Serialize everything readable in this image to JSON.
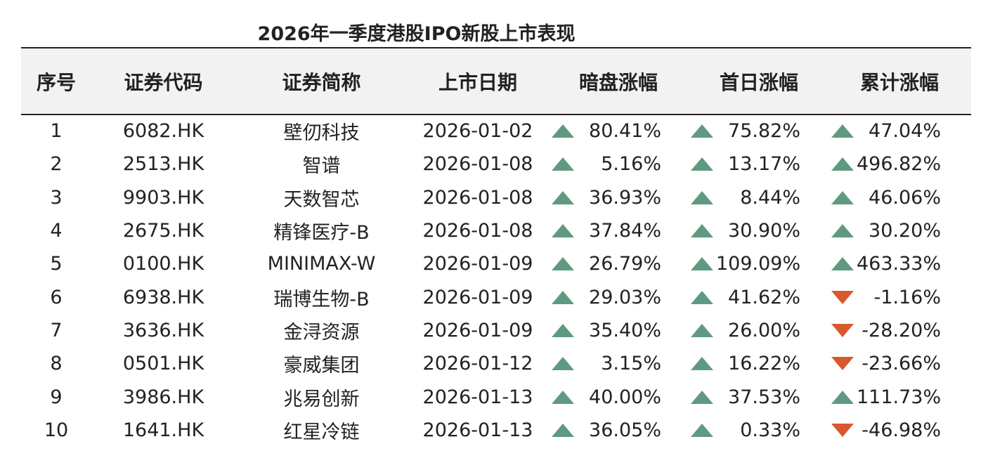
{
  "title": "2026年一季度港股IPO新股上市表现",
  "colors": {
    "up": "#5f9a80",
    "down": "#d9582e",
    "header_bg": "#f2f2f2"
  },
  "headers": [
    "序号",
    "证券代码",
    "证券简称",
    "上市日期",
    "暗盘涨幅",
    "首日涨幅",
    "累计涨幅"
  ],
  "rows": [
    {
      "no": "1",
      "code": "6082.HK",
      "name": "壁仞科技",
      "date": "2026-01-02",
      "grey": "80.41%",
      "first_day": "75.82%",
      "cumulative": "47.04%"
    },
    {
      "no": "2",
      "code": "2513.HK",
      "name": "智谱",
      "date": "2026-01-08",
      "grey": "5.16%",
      "first_day": "13.17%",
      "cumulative": "496.82%"
    },
    {
      "no": "3",
      "code": "9903.HK",
      "name": "天数智芯",
      "date": "2026-01-08",
      "grey": "36.93%",
      "first_day": "8.44%",
      "cumulative": "46.06%"
    },
    {
      "no": "4",
      "code": "2675.HK",
      "name": "精锋医疗-B",
      "date": "2026-01-08",
      "grey": "37.84%",
      "first_day": "30.90%",
      "cumulative": "30.20%"
    },
    {
      "no": "5",
      "code": "0100.HK",
      "name": "MINIMAX-W",
      "date": "2026-01-09",
      "grey": "26.79%",
      "first_day": "109.09%",
      "cumulative": "463.33%"
    },
    {
      "no": "6",
      "code": "6938.HK",
      "name": "瑞博生物-B",
      "date": "2026-01-09",
      "grey": "29.03%",
      "first_day": "41.62%",
      "cumulative": "-1.16%"
    },
    {
      "no": "7",
      "code": "3636.HK",
      "name": "金浔资源",
      "date": "2026-01-09",
      "grey": "35.40%",
      "first_day": "26.00%",
      "cumulative": "-28.20%"
    },
    {
      "no": "8",
      "code": "0501.HK",
      "name": "豪威集团",
      "date": "2026-01-12",
      "grey": "3.15%",
      "first_day": "16.22%",
      "cumulative": "-23.66%"
    },
    {
      "no": "9",
      "code": "3986.HK",
      "name": "兆易创新",
      "date": "2026-01-13",
      "grey": "40.00%",
      "first_day": "37.53%",
      "cumulative": "111.73%"
    },
    {
      "no": "10",
      "code": "1641.HK",
      "name": "红星冷链",
      "date": "2026-01-13",
      "grey": "36.05%",
      "first_day": "0.33%",
      "cumulative": "-46.98%"
    }
  ]
}
